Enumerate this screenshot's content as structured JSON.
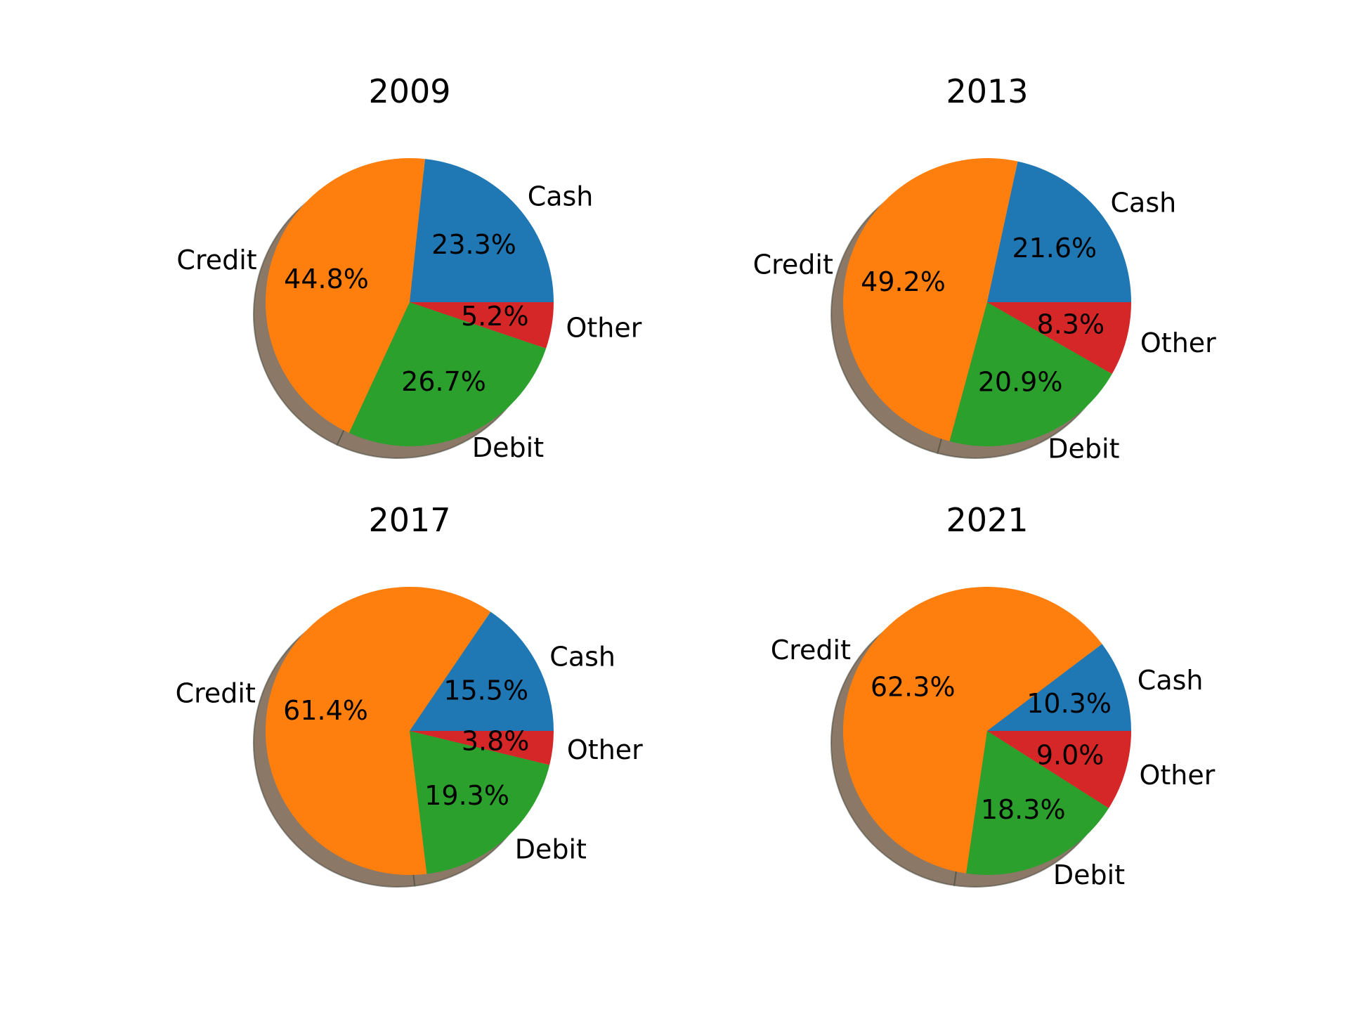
{
  "chart_data": [
    {
      "type": "pie",
      "title": "2009",
      "categories": [
        "Cash",
        "Credit",
        "Debit",
        "Other"
      ],
      "values": [
        23.3,
        44.8,
        26.7,
        5.2
      ],
      "value_labels": [
        "23.3%",
        "44.8%",
        "26.7%",
        "5.2%"
      ],
      "start_angle": 0,
      "direction": "counterclockwise",
      "shadow": true
    },
    {
      "type": "pie",
      "title": "2013",
      "categories": [
        "Cash",
        "Credit",
        "Debit",
        "Other"
      ],
      "values": [
        21.6,
        49.2,
        20.9,
        8.3
      ],
      "value_labels": [
        "21.6%",
        "49.2%",
        "20.9%",
        "8.3%"
      ],
      "start_angle": 0,
      "direction": "counterclockwise",
      "shadow": true
    },
    {
      "type": "pie",
      "title": "2017",
      "categories": [
        "Cash",
        "Credit",
        "Debit",
        "Other"
      ],
      "values": [
        15.5,
        61.4,
        19.3,
        3.8
      ],
      "value_labels": [
        "15.5%",
        "61.4%",
        "19.3%",
        "3.8%"
      ],
      "start_angle": 0,
      "direction": "counterclockwise",
      "shadow": true
    },
    {
      "type": "pie",
      "title": "2021",
      "categories": [
        "Cash",
        "Credit",
        "Debit",
        "Other"
      ],
      "values": [
        10.3,
        62.3,
        18.3,
        9.0
      ],
      "value_labels": [
        "10.3%",
        "62.3%",
        "18.3%",
        "9.0%"
      ],
      "start_angle": 0,
      "direction": "counterclockwise",
      "shadow": true
    }
  ],
  "colors": {
    "Cash": "#1f77b4",
    "Credit": "#ff7f0e",
    "Debit": "#2ca02c",
    "Other": "#d62728",
    "shadow": "#7f6a57"
  }
}
